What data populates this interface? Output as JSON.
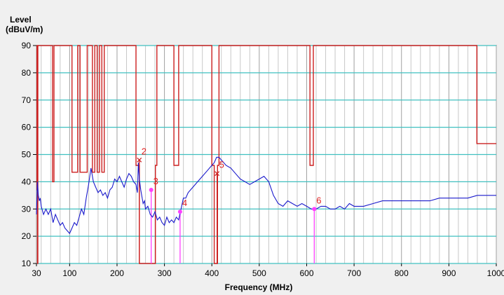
{
  "chart_data": {
    "type": "line",
    "ylabel_line1": "Level",
    "ylabel_line2": "(dBuV/m)",
    "xlabel": "Frequency (MHz)",
    "xlim": [
      30,
      1000
    ],
    "ylim": [
      10,
      90
    ],
    "x_ticks": [
      "30",
      "100",
      "200",
      "300",
      "400",
      "500",
      "600",
      "700",
      "800",
      "900",
      "1000"
    ],
    "y_ticks": [
      "10",
      "20",
      "30",
      "40",
      "50",
      "60",
      "70",
      "80",
      "90"
    ],
    "colors": {
      "trace": "#1a1acc",
      "limit": "#cc2020",
      "grid": "#40c0c0",
      "minor_grid": "#c8c8c8",
      "marker_line": "#ff40ff",
      "marker_label": "#e02020",
      "plot_bg": "#ffffff"
    },
    "series": [
      {
        "x": [
          30,
          32,
          34,
          36,
          38,
          40,
          45,
          50,
          55,
          60,
          65,
          70,
          75,
          80,
          85,
          90,
          95,
          100,
          105,
          110,
          115,
          120,
          125,
          130,
          135,
          140,
          145,
          150,
          155,
          160,
          165,
          170,
          175,
          180,
          185,
          190,
          195,
          200,
          205,
          210,
          215,
          220,
          225,
          230,
          235,
          240,
          243,
          245,
          247,
          250,
          253,
          255,
          258,
          260,
          265,
          270,
          275,
          280,
          285,
          290,
          295,
          300,
          305,
          310,
          315,
          320,
          325,
          330,
          335,
          340,
          345,
          350,
          355,
          360,
          370,
          380,
          390,
          400,
          405,
          410,
          415,
          420,
          430,
          440,
          450,
          460,
          470,
          480,
          490,
          500,
          510,
          520,
          530,
          540,
          550,
          560,
          570,
          580,
          590,
          600,
          610,
          620,
          630,
          640,
          650,
          660,
          670,
          680,
          690,
          700,
          720,
          740,
          760,
          780,
          800,
          820,
          840,
          860,
          880,
          900,
          920,
          940,
          960,
          980,
          1000
        ],
        "values": [
          28,
          40,
          35,
          33,
          34,
          31,
          28,
          30,
          28,
          30,
          25,
          28,
          26,
          24,
          25,
          23,
          22,
          21,
          23,
          25,
          24,
          27,
          30,
          28,
          34,
          39,
          45,
          40,
          38,
          36,
          37,
          35,
          36,
          34,
          37,
          38,
          41,
          40,
          42,
          40,
          38,
          41,
          43,
          42,
          40,
          39,
          36,
          47,
          41,
          37,
          34,
          32,
          33,
          30,
          31,
          28,
          27,
          29,
          26,
          27,
          25,
          24,
          27,
          25,
          26,
          25,
          27,
          26,
          30,
          34,
          34,
          36,
          37,
          38,
          40,
          42,
          44,
          46,
          47,
          49,
          49,
          48,
          46,
          45,
          43,
          41,
          40,
          39,
          40,
          41,
          42,
          40,
          35,
          32,
          31,
          33,
          32,
          31,
          32,
          31,
          30,
          30,
          31,
          31,
          30,
          30,
          31,
          30,
          32,
          31,
          31,
          32,
          33,
          33,
          33,
          33,
          33,
          33,
          34,
          34,
          34,
          34,
          35,
          35,
          35
        ]
      }
    ],
    "limit_line": {
      "x": [
        30,
        31,
        31,
        32,
        32,
        33,
        33,
        64,
        64,
        67,
        67,
        105,
        105,
        117,
        117,
        122,
        122,
        137,
        137,
        148,
        148,
        153,
        153,
        158,
        158,
        163,
        163,
        168,
        168,
        173,
        173,
        240,
        240,
        247,
        247,
        281,
        281,
        284,
        284,
        320,
        320,
        330,
        330,
        400,
        400,
        405,
        405,
        412,
        412,
        415,
        415,
        607,
        607,
        614,
        614,
        959,
        959,
        1000
      ],
      "y": [
        37,
        37,
        90,
        90,
        10,
        10,
        90,
        90,
        40,
        40,
        90,
        90,
        43.5,
        43.5,
        90,
        90,
        43.5,
        43.5,
        90,
        90,
        43.5,
        43.5,
        90,
        90,
        43.5,
        43.5,
        90,
        90,
        43.5,
        43.5,
        90,
        90,
        46,
        46,
        10,
        10,
        46,
        46,
        90,
        90,
        46,
        46,
        90,
        90,
        46,
        46,
        10,
        10,
        46,
        46,
        90,
        90,
        46,
        46,
        90,
        90,
        54,
        54
      ]
    },
    "markers": [
      {
        "label": "2",
        "x": 247,
        "y": 48,
        "symbol": "x",
        "line_to_bottom": true,
        "line_color": "limit"
      },
      {
        "label": "3",
        "x": 272,
        "y": 37,
        "symbol": "dot",
        "line_to_bottom": true,
        "line_color": "marker"
      },
      {
        "label": "4",
        "x": 333,
        "y": 29,
        "symbol": "dot",
        "line_to_bottom": true,
        "line_color": "marker"
      },
      {
        "label": "5",
        "x": 411,
        "y": 43,
        "symbol": "x",
        "line_to_bottom": true,
        "line_color": "limit"
      },
      {
        "label": "6",
        "x": 616,
        "y": 30,
        "symbol": "dot",
        "line_to_bottom": true,
        "line_color": "marker"
      }
    ]
  }
}
